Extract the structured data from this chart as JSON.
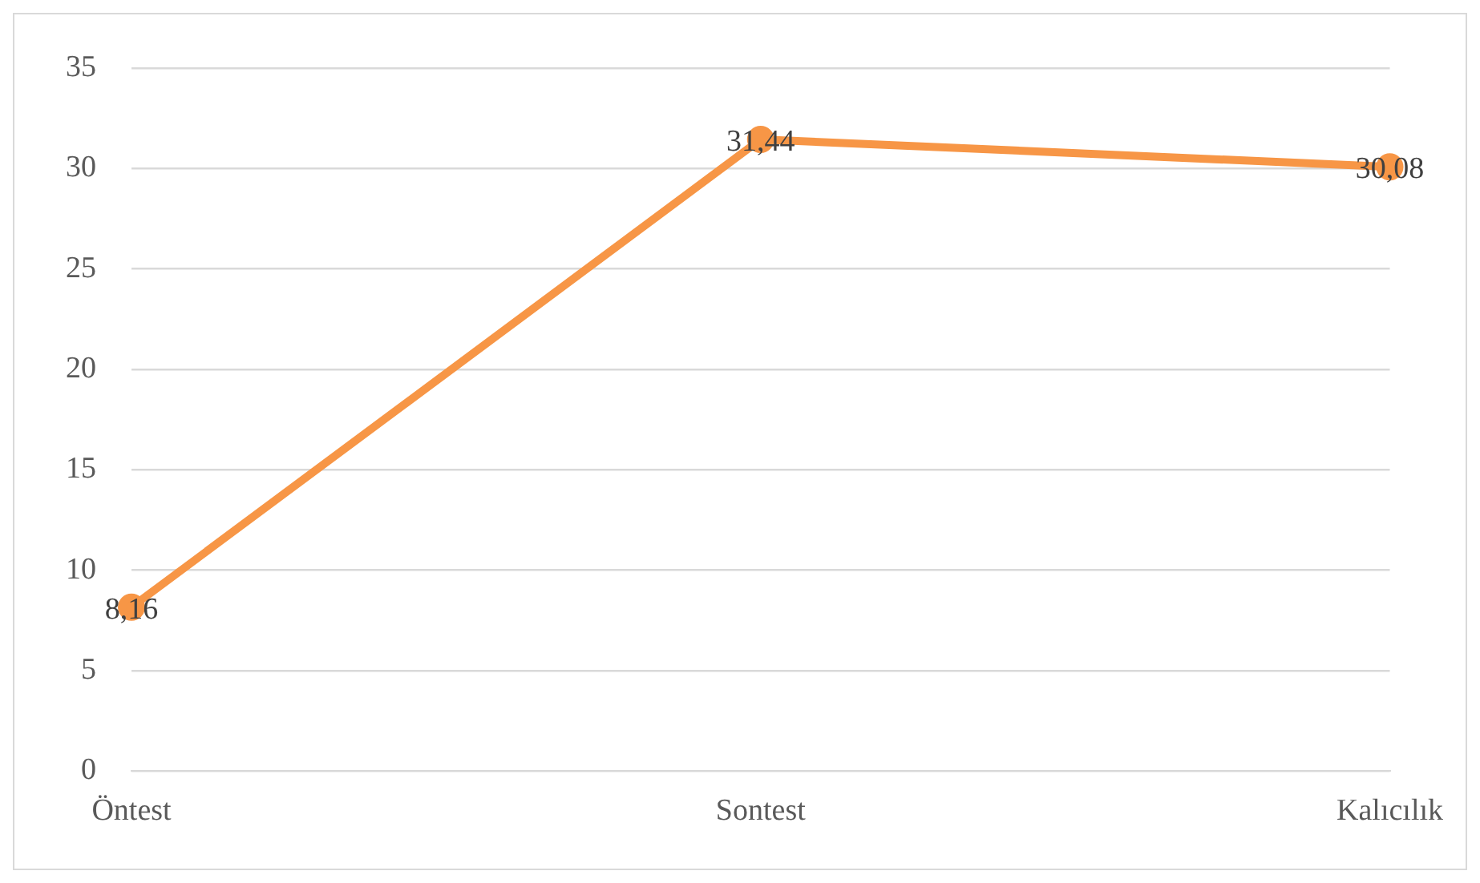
{
  "chart_data": {
    "type": "line",
    "categories": [
      "Öntest",
      "Sontest",
      "Kalıcılık"
    ],
    "series": [
      {
        "color": "#f79646",
        "values": [
          8.16,
          31.44,
          30.08
        ],
        "value_labels": [
          "8,16",
          "31,44",
          "30,08"
        ]
      }
    ],
    "ylim": [
      0,
      35
    ],
    "yticks": [
      0,
      5,
      10,
      15,
      20,
      25,
      30,
      35
    ],
    "grid": "y",
    "legend": false,
    "marker": "circle",
    "line_style": "solid"
  }
}
